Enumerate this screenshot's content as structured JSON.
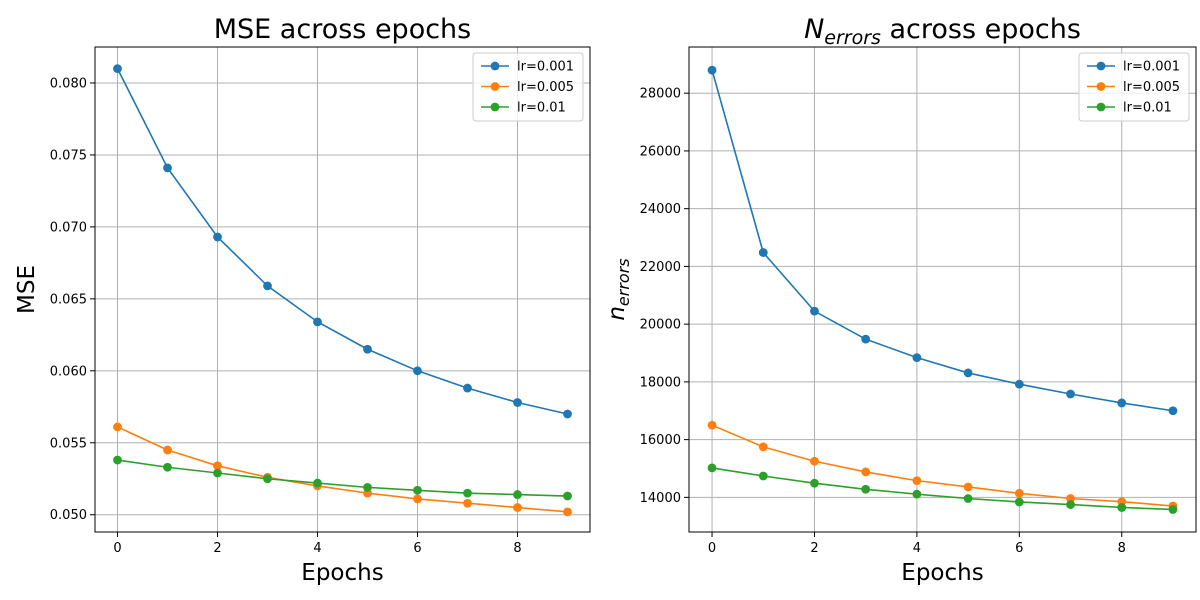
{
  "chart_data": [
    {
      "type": "line",
      "title": "MSE across epochs",
      "xlabel": "Epochs",
      "ylabel": "MSE",
      "grid": true,
      "legend": "top-right",
      "xlim": [
        -0.45,
        9.45
      ],
      "ylim": [
        0.0488,
        0.0825
      ],
      "xticks": [
        0,
        2,
        4,
        6,
        8
      ],
      "yticks": [
        0.05,
        0.055,
        0.06,
        0.065,
        0.07,
        0.075,
        0.08
      ],
      "ytick_labels": [
        "0.050",
        "0.055",
        "0.060",
        "0.065",
        "0.070",
        "0.075",
        "0.080"
      ],
      "x": [
        0,
        1,
        2,
        3,
        4,
        5,
        6,
        7,
        8,
        9
      ],
      "series": [
        {
          "name": "lr=0.001",
          "color": "#1f77b4",
          "values": [
            0.081,
            0.0741,
            0.0693,
            0.0659,
            0.0634,
            0.0615,
            0.06,
            0.0588,
            0.0578,
            0.057
          ]
        },
        {
          "name": "lr=0.005",
          "color": "#ff7f0e",
          "values": [
            0.0561,
            0.0545,
            0.0534,
            0.0526,
            0.052,
            0.0515,
            0.0511,
            0.0508,
            0.0505,
            0.0502
          ]
        },
        {
          "name": "lr=0.01",
          "color": "#2ca02c",
          "values": [
            0.0538,
            0.0533,
            0.0529,
            0.0525,
            0.0522,
            0.0519,
            0.0517,
            0.0515,
            0.0514,
            0.0513
          ]
        }
      ]
    },
    {
      "type": "line",
      "title_main": "N",
      "title_sub": "errors",
      "title_rest": " across epochs",
      "xlabel": "Epochs",
      "ylabel_main": "n",
      "ylabel_sub": "errors",
      "grid": true,
      "legend": "top-right",
      "xlim": [
        -0.45,
        9.45
      ],
      "ylim": [
        12800,
        29600
      ],
      "xticks": [
        0,
        2,
        4,
        6,
        8
      ],
      "yticks": [
        14000,
        16000,
        18000,
        20000,
        22000,
        24000,
        26000,
        28000
      ],
      "ytick_labels": [
        "14000",
        "16000",
        "18000",
        "20000",
        "22000",
        "24000",
        "26000",
        "28000"
      ],
      "x": [
        0,
        1,
        2,
        3,
        4,
        5,
        6,
        7,
        8,
        9
      ],
      "series": [
        {
          "name": "lr=0.001",
          "color": "#1f77b4",
          "values": [
            28800,
            22480,
            20450,
            19480,
            18840,
            18310,
            17920,
            17580,
            17270,
            17000
          ]
        },
        {
          "name": "lr=0.005",
          "color": "#ff7f0e",
          "values": [
            16500,
            15750,
            15250,
            14880,
            14580,
            14360,
            14140,
            13960,
            13850,
            13700
          ]
        },
        {
          "name": "lr=0.01",
          "color": "#2ca02c",
          "values": [
            15020,
            14740,
            14490,
            14280,
            14110,
            13960,
            13840,
            13750,
            13650,
            13580
          ]
        }
      ]
    }
  ]
}
